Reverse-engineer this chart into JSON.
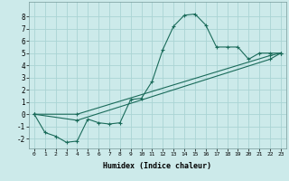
{
  "xlabel": "Humidex (Indice chaleur)",
  "bg_color": "#cceaea",
  "grid_color": "#aad4d4",
  "line_color": "#1a6b5a",
  "xlim": [
    -0.5,
    23.5
  ],
  "ylim": [
    -2.8,
    9.2
  ],
  "xticks": [
    0,
    1,
    2,
    3,
    4,
    5,
    6,
    7,
    8,
    9,
    10,
    11,
    12,
    13,
    14,
    15,
    16,
    17,
    18,
    19,
    20,
    21,
    22,
    23
  ],
  "yticks": [
    -2,
    -1,
    0,
    1,
    2,
    3,
    4,
    5,
    6,
    7,
    8
  ],
  "line1_x": [
    0,
    1,
    2,
    3,
    4,
    5,
    6,
    7,
    8,
    9,
    10,
    11,
    12,
    13,
    14,
    15,
    16,
    17,
    18,
    19,
    20,
    21,
    22,
    23
  ],
  "line1_y": [
    0.0,
    -1.5,
    -1.8,
    -2.3,
    -2.2,
    -0.4,
    -0.7,
    -0.8,
    -0.7,
    1.2,
    1.3,
    2.7,
    5.3,
    7.2,
    8.1,
    8.2,
    7.3,
    5.5,
    5.5,
    5.5,
    4.5,
    5.0,
    5.0,
    5.0
  ],
  "line2_x": [
    0,
    4,
    22,
    23
  ],
  "line2_y": [
    0.0,
    0.0,
    4.8,
    5.0
  ],
  "line3_x": [
    0,
    4,
    22,
    23
  ],
  "line3_y": [
    0.0,
    -0.5,
    4.5,
    5.0
  ]
}
